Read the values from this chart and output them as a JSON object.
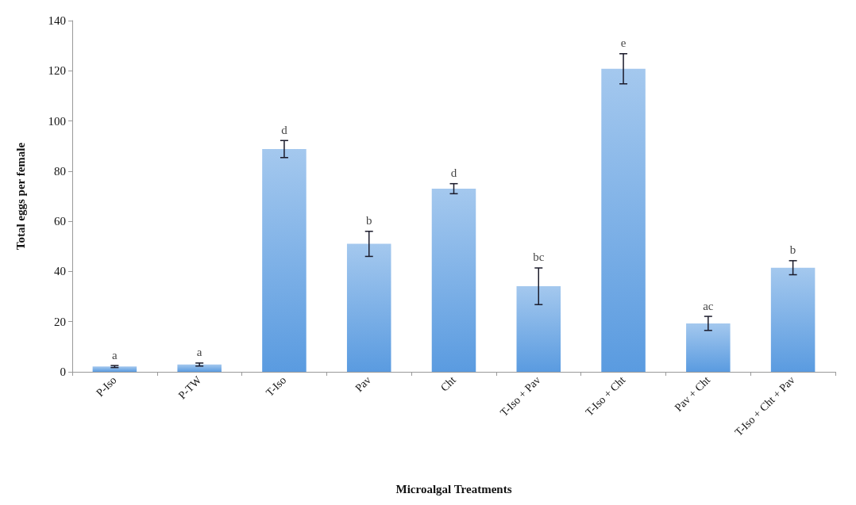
{
  "chart_data": {
    "type": "bar",
    "xlabel": "Microalgal Treatments",
    "ylabel": "Total eggs per female",
    "categories": [
      "P-Iso",
      "P-TW",
      "T-Iso",
      "Pav",
      "Cht",
      "T-Iso + Pav",
      "T-Iso + Cht",
      "Pav + Cht",
      "T-Iso + Cht + Pav"
    ],
    "values": [
      2.1,
      2.9,
      88.8,
      51.0,
      73.0,
      34.1,
      120.8,
      19.3,
      41.5
    ],
    "errors": [
      0.4,
      0.6,
      3.4,
      5.0,
      2.0,
      7.3,
      6.0,
      2.8,
      2.8
    ],
    "color": "#5a9be0",
    "ylim": [
      0,
      140
    ],
    "yticks": [
      0,
      20,
      40,
      60,
      80,
      100,
      120,
      140
    ],
    "grid": false,
    "annotations": [
      {
        "text": "a",
        "x": "P-Iso",
        "y": 2.5
      },
      {
        "text": "a",
        "x": "P-TW",
        "y": 3.5
      },
      {
        "text": "d",
        "x": "T-Iso",
        "y": 92.2
      },
      {
        "text": "b",
        "x": "Pav",
        "y": 56.0
      },
      {
        "text": "d",
        "x": "Cht",
        "y": 75.0
      },
      {
        "text": "bc",
        "x": "T-Iso + Pav",
        "y": 41.4
      },
      {
        "text": "e",
        "x": "T-Iso + Cht",
        "y": 126.8
      },
      {
        "text": "ac",
        "x": "Pav + Cht",
        "y": 22.1
      },
      {
        "text": "b",
        "x": "T-Iso + Cht + Pav",
        "y": 44.3
      }
    ]
  }
}
